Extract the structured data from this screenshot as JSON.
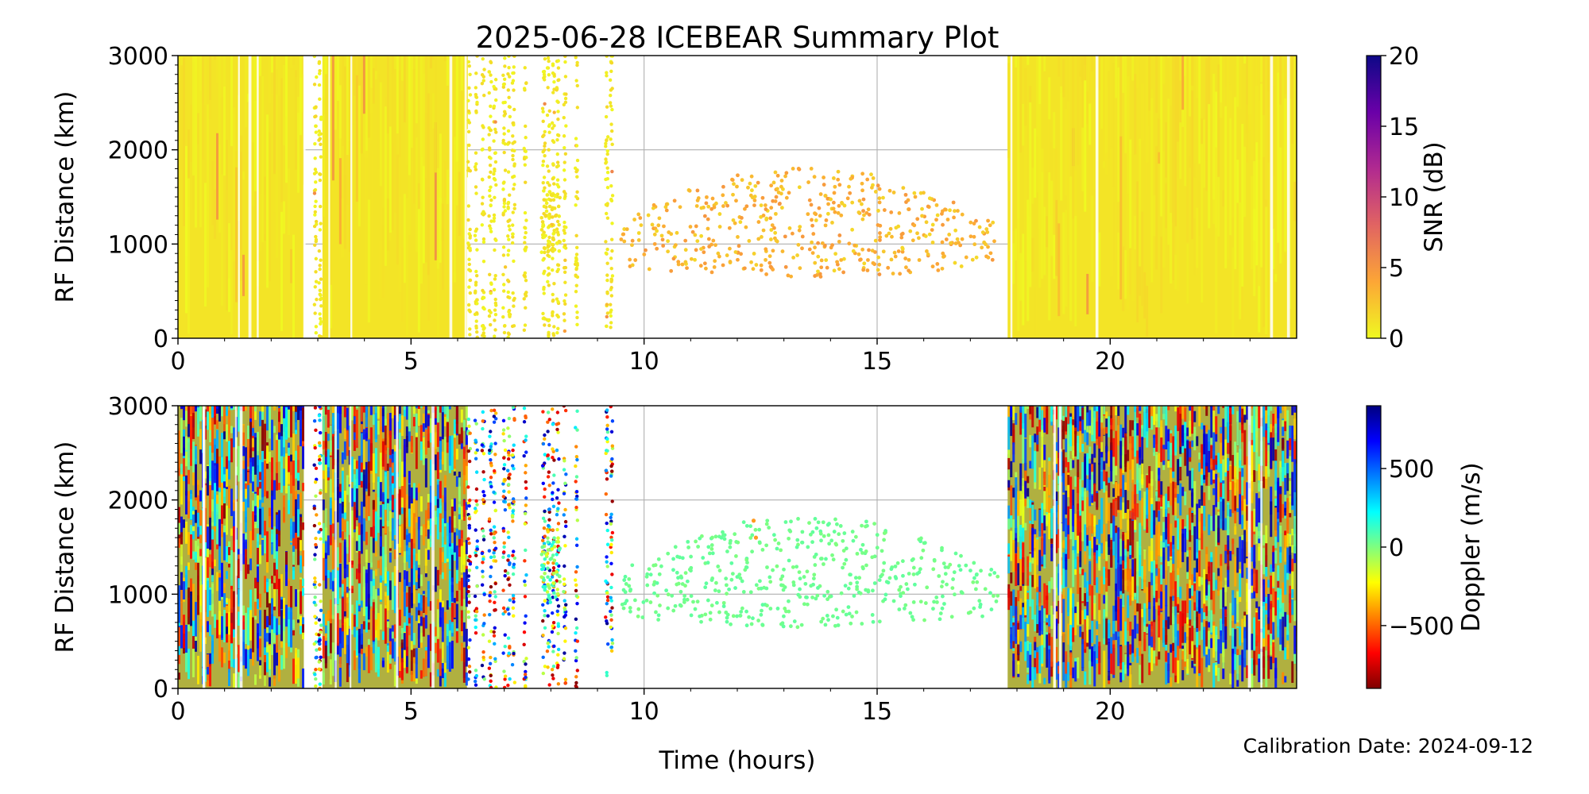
{
  "figure": {
    "title": "2025-06-28 ICEBEAR Summary Plot",
    "calibration": "Calibration Date: 2024-09-12",
    "xlabel": "Time (hours)"
  },
  "chart_data": [
    {
      "type": "scatter",
      "panel": "top",
      "title": "2025-06-28 ICEBEAR Summary Plot",
      "xlabel": "",
      "ylabel": "RF Distance (km)",
      "xlim": [
        0,
        24
      ],
      "ylim": [
        0,
        3000
      ],
      "x_ticks": [
        "0",
        "5",
        "10",
        "15",
        "20"
      ],
      "y_ticks": [
        "0",
        "1000",
        "2000",
        "3000"
      ],
      "grid": true,
      "color_variable": "SNR",
      "colorbar": {
        "label": "SNR (dB)",
        "range": [
          0,
          20
        ],
        "ticks": [
          "0",
          "5",
          "10",
          "15",
          "20"
        ],
        "colormap": "plasma_r",
        "stops": [
          "#f0f921",
          "#fca636",
          "#e16462",
          "#b12a90",
          "#6a00a8",
          "#0d0887"
        ]
      },
      "dense_echo_intervals_hours": [
        [
          0,
          2.7
        ],
        [
          3.1,
          6.2
        ],
        [
          17.8,
          24
        ]
      ],
      "sparse_echo_intervals_hours": [
        [
          2.7,
          3.1
        ],
        [
          6.2,
          9.5
        ],
        [
          9.5,
          17.8
        ]
      ],
      "dense_range_km": [
        0,
        3000
      ],
      "sparse_scatter_region": {
        "x_range_hours": [
          9.5,
          17.6
        ],
        "y_range_km": [
          300,
          1800
        ]
      },
      "typical_snr_db": {
        "dense": 1,
        "sparse_region": 3
      }
    },
    {
      "type": "scatter",
      "panel": "bottom",
      "xlabel": "Time (hours)",
      "ylabel": "RF Distance (km)",
      "xlim": [
        0,
        24
      ],
      "ylim": [
        0,
        3000
      ],
      "x_ticks": [
        "0",
        "5",
        "10",
        "15",
        "20"
      ],
      "y_ticks": [
        "0",
        "1000",
        "2000",
        "3000"
      ],
      "grid": true,
      "color_variable": "Doppler",
      "colorbar": {
        "label": "Doppler (m/s)",
        "range": [
          -900,
          900
        ],
        "ticks": [
          "−500",
          "0",
          "500"
        ],
        "tick_values": [
          -500,
          0,
          500
        ],
        "colormap": "jet_r",
        "stops": [
          "#7f0000",
          "#ff0000",
          "#ff7f00",
          "#ffff00",
          "#7fff7f",
          "#00ffff",
          "#007fff",
          "#0000ff",
          "#00007f"
        ]
      },
      "dense_echo_intervals_hours": [
        [
          0,
          2.7
        ],
        [
          3.1,
          6.2
        ],
        [
          17.8,
          24
        ]
      ],
      "sparse_echo_intervals_hours": [
        [
          2.7,
          3.1
        ],
        [
          6.2,
          9.5
        ],
        [
          9.5,
          17.8
        ]
      ],
      "dense_range_km": [
        0,
        3000
      ],
      "sparse_scatter_region": {
        "x_range_hours": [
          9.5,
          17.6
        ],
        "y_range_km": [
          300,
          1800
        ]
      },
      "typical_doppler_ms": {
        "sparse_region": 30
      }
    }
  ]
}
